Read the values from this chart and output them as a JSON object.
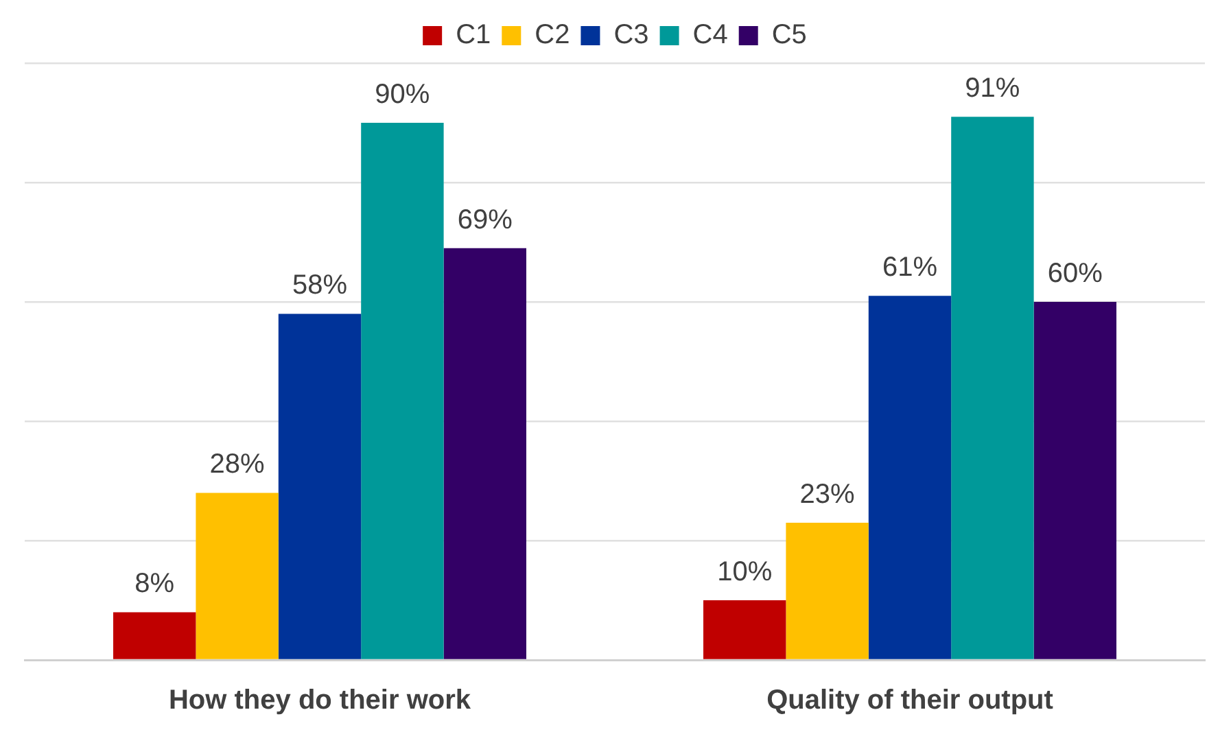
{
  "chart_data": {
    "type": "bar",
    "categories": [
      "How they do their work",
      "Quality of their output"
    ],
    "series": [
      {
        "name": "C1",
        "color": "#c00000",
        "values": [
          8,
          10
        ],
        "value_labels": [
          "8%",
          "10%"
        ]
      },
      {
        "name": "C2",
        "color": "#ffc000",
        "values": [
          28,
          23
        ],
        "value_labels": [
          "28%",
          "23%"
        ]
      },
      {
        "name": "C3",
        "color": "#003399",
        "values": [
          58,
          61
        ],
        "value_labels": [
          "58%",
          "61%"
        ]
      },
      {
        "name": "C4",
        "color": "#009999",
        "values": [
          90,
          91
        ],
        "value_labels": [
          "90%",
          "91%"
        ]
      },
      {
        "name": "C5",
        "color": "#330066",
        "values": [
          69,
          60
        ],
        "value_labels": [
          "69%",
          "60%"
        ]
      }
    ],
    "ylim": [
      0,
      100
    ],
    "yticks": [
      {
        "value": 0,
        "label": null
      },
      {
        "value": 20,
        "label": null
      },
      {
        "value": 40,
        "label": null
      },
      {
        "value": 60,
        "label": null
      },
      {
        "value": 80,
        "label": null
      },
      {
        "value": 100,
        "label": null
      }
    ],
    "grid": "y",
    "legend": "top",
    "tick_labels": "x"
  }
}
